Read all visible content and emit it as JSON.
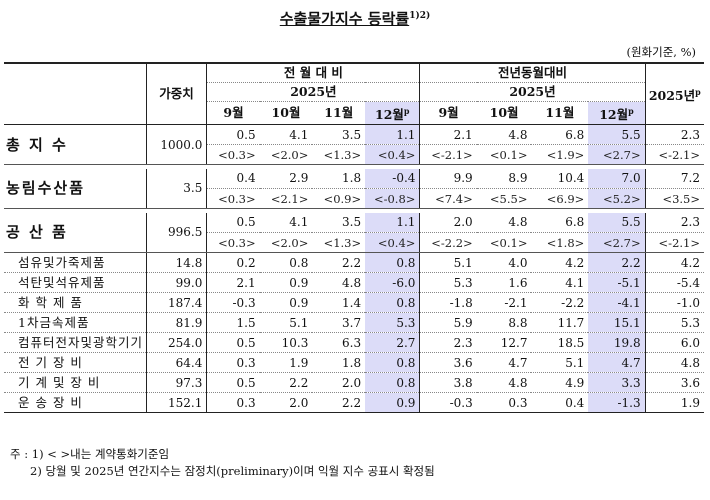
{
  "title": "수출물가지수 등락률",
  "title_sup": "1)2)",
  "unit": "(원화기준, %)",
  "header": {
    "weight": "가중치",
    "group_mom": "전 월 대 비",
    "group_yoy": "전년동월대비",
    "year": "2025년",
    "annual": "2025년",
    "annual_sup": "p",
    "months": [
      "9월",
      "10월",
      "11월",
      "12월"
    ],
    "months_sup": [
      "",
      "",
      "",
      "p"
    ]
  },
  "rows": [
    {
      "name": "총 지 수",
      "weight": "1000.0",
      "mom": [
        "0.5",
        "4.1",
        "3.5",
        "1.1"
      ],
      "yoy": [
        "2.1",
        "4.8",
        "6.8",
        "5.5"
      ],
      "annual": "2.3",
      "mom_c": [
        "<0.3>",
        "<2.0>",
        "<1.3>",
        "<0.4>"
      ],
      "yoy_c": [
        "<-2.1>",
        "<0.1>",
        "<1.9>",
        "<2.7>"
      ],
      "annual_c": "<-2.1>"
    },
    {
      "name": "농림수산품",
      "weight": "3.5",
      "mom": [
        "0.4",
        "2.9",
        "1.8",
        "-0.4"
      ],
      "yoy": [
        "9.9",
        "8.9",
        "10.4",
        "7.0"
      ],
      "annual": "7.2",
      "mom_c": [
        "<0.3>",
        "<2.1>",
        "<0.9>",
        "<-0.8>"
      ],
      "yoy_c": [
        "<7.4>",
        "<5.5>",
        "<6.9>",
        "<5.2>"
      ],
      "annual_c": "<3.5>"
    },
    {
      "name": "공 산 품",
      "weight": "996.5",
      "mom": [
        "0.5",
        "4.1",
        "3.5",
        "1.1"
      ],
      "yoy": [
        "2.0",
        "4.8",
        "6.8",
        "5.5"
      ],
      "annual": "2.3",
      "mom_c": [
        "<0.3>",
        "<2.0>",
        "<1.3>",
        "<0.4>"
      ],
      "yoy_c": [
        "<-2.2>",
        "<0.1>",
        "<1.8>",
        "<2.7>"
      ],
      "annual_c": "<-2.1>"
    }
  ],
  "subrows": [
    {
      "name": "섬유및가죽제품",
      "weight": "14.8",
      "mom": [
        "0.2",
        "0.8",
        "2.2",
        "0.8"
      ],
      "yoy": [
        "5.1",
        "4.0",
        "4.2",
        "2.2"
      ],
      "annual": "4.2"
    },
    {
      "name": "석탄및석유제품",
      "weight": "99.0",
      "mom": [
        "2.1",
        "0.9",
        "4.8",
        "-6.0"
      ],
      "yoy": [
        "5.3",
        "1.6",
        "4.1",
        "-5.1"
      ],
      "annual": "-5.4"
    },
    {
      "name": "화 학 제 품",
      "weight": "187.4",
      "mom": [
        "-0.3",
        "0.9",
        "1.4",
        "0.8"
      ],
      "yoy": [
        "-1.8",
        "-2.1",
        "-2.2",
        "-4.1"
      ],
      "annual": "-1.0"
    },
    {
      "name": "1차금속제품",
      "weight": "81.9",
      "mom": [
        "1.5",
        "5.1",
        "3.7",
        "5.3"
      ],
      "yoy": [
        "5.9",
        "8.8",
        "11.7",
        "15.1"
      ],
      "annual": "5.3"
    },
    {
      "name": "컴퓨터전자및광학기기",
      "weight": "254.0",
      "mom": [
        "0.5",
        "10.3",
        "6.3",
        "2.7"
      ],
      "yoy": [
        "2.3",
        "12.7",
        "18.5",
        "19.8"
      ],
      "annual": "6.0"
    },
    {
      "name": "전 기 장 비",
      "weight": "64.4",
      "mom": [
        "0.3",
        "1.9",
        "1.8",
        "0.8"
      ],
      "yoy": [
        "3.6",
        "4.7",
        "5.1",
        "4.7"
      ],
      "annual": "4.8"
    },
    {
      "name": "기 계 및 장 비",
      "weight": "97.3",
      "mom": [
        "0.5",
        "2.2",
        "2.0",
        "0.8"
      ],
      "yoy": [
        "3.8",
        "4.8",
        "4.9",
        "3.3"
      ],
      "annual": "3.6"
    },
    {
      "name": "운 송 장 비",
      "weight": "152.1",
      "mom": [
        "0.3",
        "2.0",
        "2.2",
        "0.9"
      ],
      "yoy": [
        "-0.3",
        "0.3",
        "0.4",
        "-1.3"
      ],
      "annual": "1.9"
    }
  ],
  "notes": {
    "label": "주 :",
    "n1": "1) < >내는 계약통화기준임",
    "n2": "2) 당월 및 2025년 연간지수는 잠정치(preliminary)이며 익월 지수 공표시 확정됨"
  }
}
